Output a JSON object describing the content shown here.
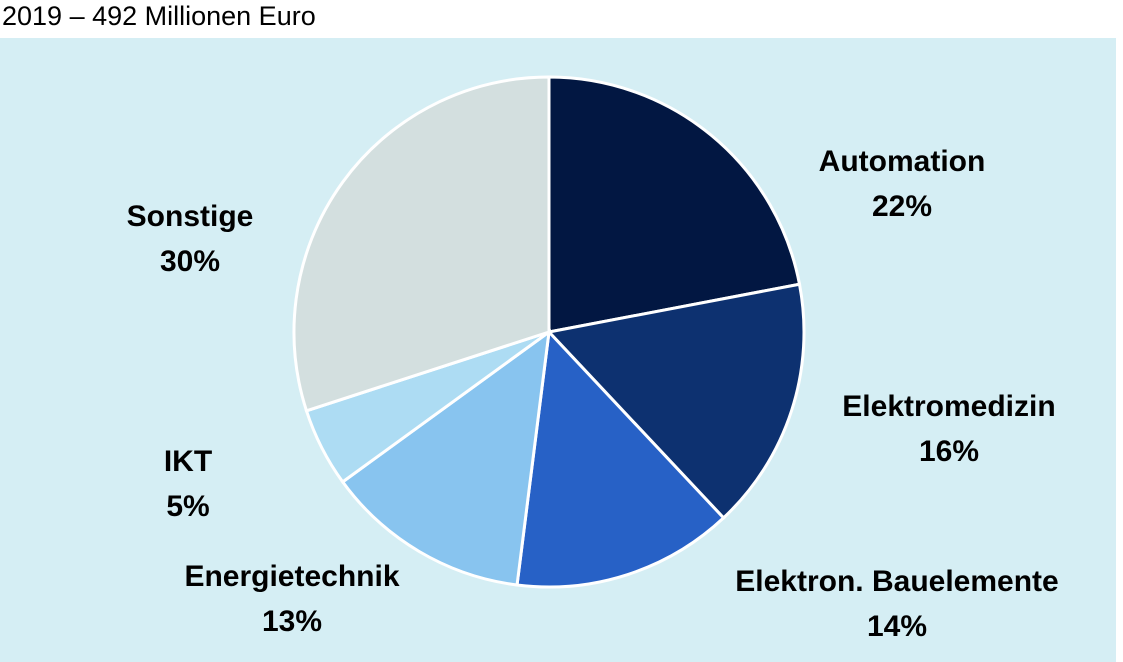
{
  "chart_data": {
    "type": "pie",
    "title": "2019 – 492 Millionen Euro",
    "categories": [
      "Automation",
      "Elektromedizin",
      "Elektron. Bauelemente",
      "Energietechnik",
      "IKT",
      "Sonstige"
    ],
    "values": [
      22,
      16,
      14,
      13,
      5,
      30
    ],
    "value_labels": [
      "22%",
      "16%",
      "14%",
      "13%",
      "5%",
      "30%"
    ],
    "colors": [
      "#021742",
      "#0d3170",
      "#2761c6",
      "#88c4ef",
      "#addcf3",
      "#d3dfdf"
    ]
  }
}
